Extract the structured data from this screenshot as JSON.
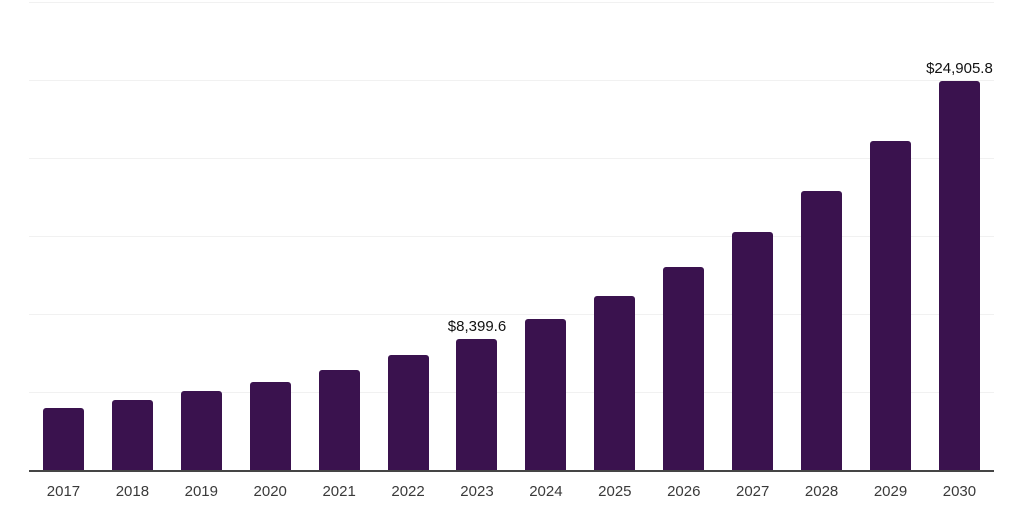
{
  "chart_style": {
    "background": "#ffffff",
    "bar_color": "#3a124e",
    "grid_color": "#f1f1f1",
    "axis_color": "#454545",
    "tick_label_color": "#3a3a3a",
    "data_label_color": "#111111"
  },
  "chart_data": {
    "type": "bar",
    "title": "",
    "xlabel": "",
    "ylabel": "",
    "categories": [
      "2017",
      "2018",
      "2019",
      "2020",
      "2021",
      "2022",
      "2023",
      "2024",
      "2025",
      "2026",
      "2027",
      "2028",
      "2029",
      "2030"
    ],
    "values": [
      4000,
      4460,
      5060,
      5670,
      6440,
      7350,
      8399.6,
      9680,
      11180,
      13000,
      15230,
      17890,
      21060,
      24905.8
    ],
    "data_labels": {
      "2023": "$8,399.6",
      "2030": "$24,905.8"
    },
    "ylim": [
      0,
      30000
    ],
    "ytick_step": 5000,
    "grid": "horizontal",
    "legend": "none",
    "y_axis_tick_labels_visible": false
  }
}
